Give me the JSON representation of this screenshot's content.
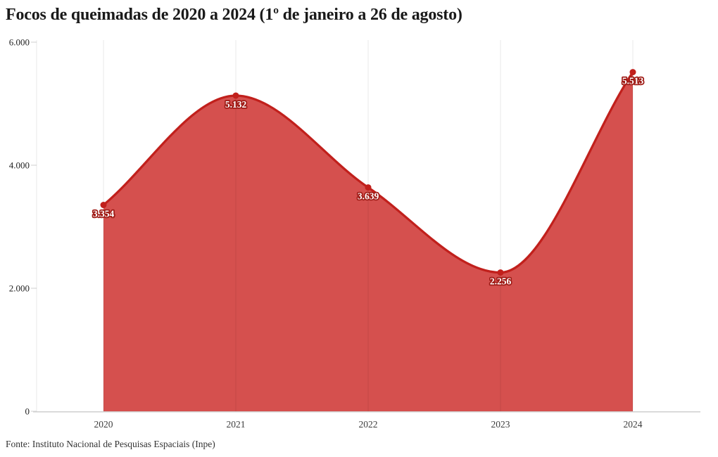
{
  "page": {
    "title": "Focos de queimadas de 2020 a 2024 (1º de janeiro a 26 de agosto)",
    "source": "Fonte: Instituto Nacional de Pesquisas Espaciais (Inpe)"
  },
  "chart_data": {
    "type": "area",
    "title": "Focos de queimadas de 2020 a 2024 (1º de janeiro a 26 de agosto)",
    "categories": [
      "2020",
      "2021",
      "2022",
      "2023",
      "2024"
    ],
    "values": [
      3354,
      5132,
      3639,
      2256,
      5513
    ],
    "point_labels": [
      "3.354",
      "5.132",
      "3.639",
      "2.256",
      "5.513"
    ],
    "y_ticks": [
      {
        "value": 0,
        "label": "0"
      },
      {
        "value": 2000,
        "label": "2.000"
      },
      {
        "value": 4000,
        "label": "4.000"
      },
      {
        "value": 6000,
        "label": "6.000"
      }
    ],
    "ylim": [
      0,
      6000
    ],
    "xlabel": "",
    "ylabel": "",
    "grid": "vertical-only",
    "legend": "none",
    "curve": "monotone",
    "source": "Fonte: Instituto Nacional de Pesquisas Espaciais (Inpe)",
    "colors": {
      "area_fill": "#d5504e",
      "line": "#c1201c",
      "point": "#c1201c",
      "value_label_text": "#ffffff",
      "value_label_outline": "#9f1b16",
      "gridline": "rgba(0,0,0,0.085)",
      "axis_line": "#cfcfcf",
      "y_tick_text": "#1f1f1f",
      "x_tick_text": "#3d3d3d",
      "title_text": "#1a1a1a",
      "source_text": "#333333"
    }
  }
}
